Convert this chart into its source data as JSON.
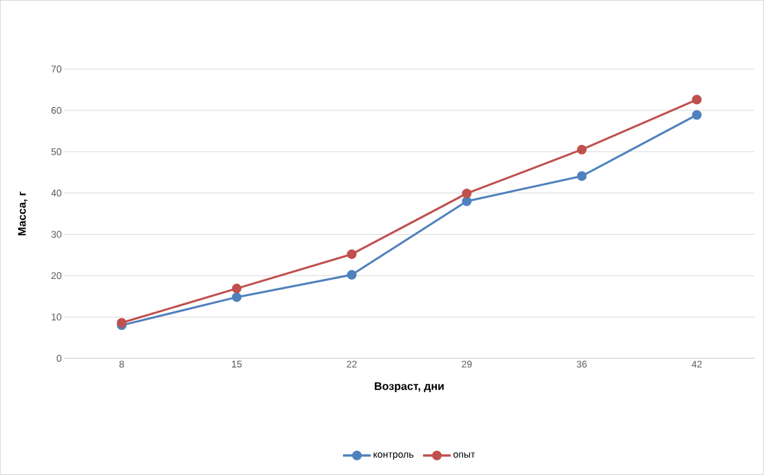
{
  "chart_data": {
    "type": "line",
    "xlabel": "Возраст, дни",
    "ylabel": "Масса, г",
    "categories": [
      "8",
      "15",
      "22",
      "29",
      "36",
      "42"
    ],
    "series": [
      {
        "name": "контроль",
        "color": "#4f81bd",
        "values": [
          8,
          14.8,
          20.2,
          38,
          44.1,
          58.9
        ]
      },
      {
        "name": "опыт",
        "color": "#c0504d",
        "values": [
          8.6,
          16.9,
          25.2,
          39.9,
          50.5,
          62.6
        ]
      }
    ],
    "ylim": [
      0,
      70
    ],
    "yticks": [
      0,
      10,
      20,
      30,
      40,
      50,
      60,
      70
    ],
    "grid": "y",
    "legend": "bottom",
    "marker": "circle",
    "line_style": "solid"
  }
}
